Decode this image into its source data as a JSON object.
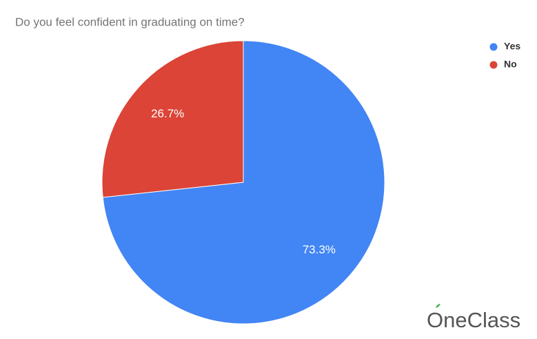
{
  "chart_data": {
    "type": "pie",
    "title": "Do you feel confident in graduating on time?",
    "categories": [
      "Yes",
      "No"
    ],
    "values": [
      73.3,
      26.7
    ],
    "value_labels": [
      "73.3%",
      "26.7%"
    ],
    "colors": [
      "#4285f4",
      "#db4437"
    ],
    "legend": "top-right"
  },
  "watermark": "OneClass"
}
